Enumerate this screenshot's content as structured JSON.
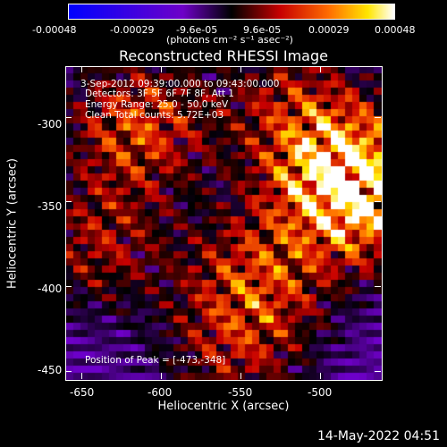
{
  "colorbar": {
    "ticks": [
      "-0.00048",
      "-0.00029",
      "-9.6e-05",
      "9.6e-05",
      "0.00029",
      "0.00048"
    ],
    "unit_label": "(photons cm⁻² s⁻¹ asec⁻²)"
  },
  "chart_data": {
    "type": "heatmap",
    "title": "Reconstructed RHESSI Image",
    "xlabel": "Heliocentric X (arcsec)",
    "ylabel": "Heliocentric Y (arcsec)",
    "xlim": [
      -660,
      -462
    ],
    "ylim": [
      -455,
      -270
    ],
    "xticks": [
      -650,
      -600,
      -550,
      -500
    ],
    "yticks": [
      -300,
      -350,
      -400,
      -450
    ],
    "color_range": [
      -0.00048,
      0.00048
    ],
    "colormap": "blue-purple-black-red-yellow-white",
    "peak": [
      -473,
      -348
    ]
  },
  "annotations": {
    "time_range": "3-Sep-2012 09:39:00.000 to 09:43:00.000",
    "detectors": "Detectors: 3F 5F 6F 7F 8F, Att 1",
    "energy": "Energy Range: 25.0 - 50.0 keV",
    "clean": "Clean    Total counts: 5.72E+03",
    "peak_position": "Position of Peak = [-473,-348]"
  },
  "footer": {
    "timestamp": "14-May-2022 04:51"
  }
}
